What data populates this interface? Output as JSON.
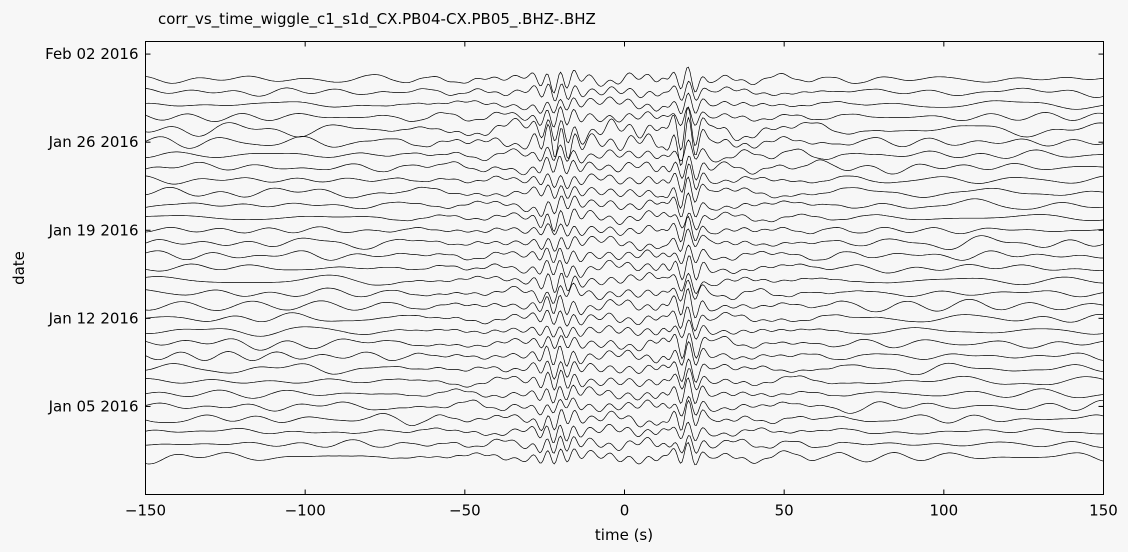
{
  "chart_data": {
    "type": "line",
    "title": "corr_vs_time_wiggle_c1_s1d_CX.PB04-CX.PB05_.BHZ-.BHZ",
    "xlabel": "time (s)",
    "ylabel": "date",
    "xlim": [
      -150,
      150
    ],
    "x_ticks": [
      -150,
      -100,
      -50,
      0,
      50,
      100,
      150
    ],
    "x_tick_labels": [
      "−150",
      "−100",
      "−50",
      "0",
      "50",
      "100",
      "150"
    ],
    "y_tick_labels": [
      "Feb 02 2016",
      "Jan 26 2016",
      "Jan 19 2016",
      "Jan 12 2016",
      "Jan 05 2016"
    ],
    "y_tick_dates": [
      "2016-02-02",
      "2016-01-26",
      "2016-01-19",
      "2016-01-12",
      "2016-01-05"
    ],
    "ylim": [
      "2015-12-29",
      "2016-02-03"
    ],
    "trace_dates": [
      "2016-01-01",
      "2016-01-31"
    ],
    "trace_spacing_days": 1,
    "grid": false,
    "line_color": "#000000",
    "packets": [
      {
        "center": -21,
        "width": 4,
        "period": 4.5
      },
      {
        "center": 19,
        "width": 4,
        "period": 4.5
      }
    ]
  }
}
